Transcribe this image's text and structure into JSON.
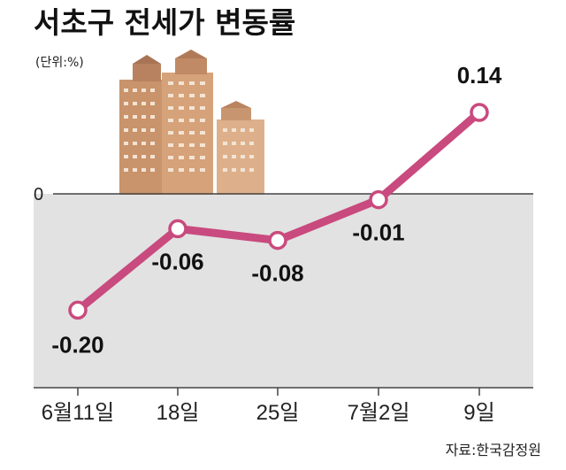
{
  "chart_data": {
    "type": "line",
    "title": "서초구 전세가 변동률",
    "unit_label": "(단위:%)",
    "categories": [
      "6월11일",
      "18일",
      "25일",
      "7월2일",
      "9일"
    ],
    "series": [
      {
        "values": [
          -0.2,
          -0.06,
          -0.08,
          -0.01,
          0.14
        ]
      }
    ],
    "data_labels": [
      "-0.20",
      "-0.06",
      "-0.08",
      "-0.01",
      "0.14"
    ],
    "zero_label": "0",
    "ylim": [
      -0.3,
      0.14
    ],
    "source": "자료:한국감정원",
    "colors": {
      "line": "#c94a7e",
      "marker_fill": "#ffffff",
      "negative_area": "#e2e2e2"
    },
    "decoration": "apartment-buildings-illustration"
  }
}
